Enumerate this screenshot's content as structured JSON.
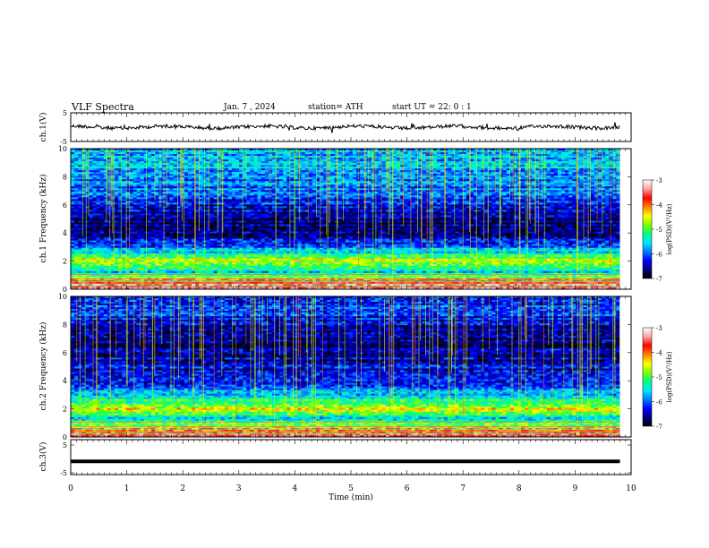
{
  "header": {
    "title": "VLF  Spectra",
    "date": "Jan.  7  , 2024",
    "station": "station= ATH",
    "start": "start  UT  =    22: 0   : 1"
  },
  "colorbar": {
    "label": "log(PSD)(V²/Hz)",
    "ticks": [
      "-3",
      "-4",
      "-5",
      "-6",
      "-7"
    ],
    "colors": [
      "#000000",
      "#00007f",
      "#0000ff",
      "#0080ff",
      "#00e5ff",
      "#00ff80",
      "#80ff00",
      "#ffff00",
      "#ff8000",
      "#ff0000",
      "#ffa0a0",
      "#ffffff"
    ]
  },
  "chart_data": [
    {
      "type": "line",
      "name": "ch1-waveform",
      "ylabel": "ch.1(V)",
      "ylim": [
        -5,
        5
      ],
      "yticks": [
        "5",
        "-5"
      ],
      "xlim": [
        0,
        10
      ],
      "description_value": "noisy waveform near 0 V over 0–9.8 min",
      "y_mean": 0.0
    },
    {
      "type": "heatmap",
      "name": "ch1-spectrogram",
      "ylabel": "ch.1 Frequency (kHz)",
      "ylim": [
        0,
        10
      ],
      "yticks": [
        "10",
        "8",
        "6",
        "4",
        "2",
        "0"
      ],
      "xlim": [
        0,
        10
      ],
      "data_xmax": 9.8,
      "zlim": [
        -7,
        -3
      ],
      "bands": [
        {
          "f_khz": 0.2,
          "log_psd": -3.3
        },
        {
          "f_khz": 0.6,
          "log_psd": -3.8
        },
        {
          "f_khz": 1.2,
          "log_psd": -5.5
        },
        {
          "f_khz": 2.1,
          "log_psd": -4.6
        },
        {
          "f_khz": 3.0,
          "log_psd": -5.9
        },
        {
          "f_khz": 4.3,
          "log_psd": -6.8
        },
        {
          "f_khz": 6.0,
          "log_psd": -6.2
        },
        {
          "f_khz": 8.5,
          "log_psd": -5.6
        }
      ]
    },
    {
      "type": "heatmap",
      "name": "ch2-spectrogram",
      "ylabel": "ch.2 Frequency (kHz)",
      "ylim": [
        0,
        10
      ],
      "yticks": [
        "10",
        "8",
        "6",
        "4",
        "2",
        "0"
      ],
      "xlim": [
        0,
        10
      ],
      "data_xmax": 9.8,
      "zlim": [
        -7,
        -3
      ],
      "bands": [
        {
          "f_khz": 0.2,
          "log_psd": -3.3
        },
        {
          "f_khz": 0.6,
          "log_psd": -4.2
        },
        {
          "f_khz": 1.3,
          "log_psd": -5.4
        },
        {
          "f_khz": 2.0,
          "log_psd": -4.3
        },
        {
          "f_khz": 3.0,
          "log_psd": -5.7
        },
        {
          "f_khz": 4.5,
          "log_psd": -6.3
        },
        {
          "f_khz": 7.0,
          "log_psd": -6.7
        },
        {
          "f_khz": 9.0,
          "log_psd": -6.1
        }
      ]
    },
    {
      "type": "line",
      "name": "ch3-waveform",
      "ylabel": "ch.3(V)",
      "ylim": [
        -5,
        5
      ],
      "yticks": [
        "5",
        "-5"
      ],
      "xlim": [
        0,
        10
      ],
      "y_mean": -2.2
    }
  ],
  "xaxis": {
    "label": "Time  (min)",
    "ticks": [
      "0",
      "1",
      "2",
      "3",
      "4",
      "5",
      "6",
      "7",
      "8",
      "9",
      "10"
    ]
  }
}
